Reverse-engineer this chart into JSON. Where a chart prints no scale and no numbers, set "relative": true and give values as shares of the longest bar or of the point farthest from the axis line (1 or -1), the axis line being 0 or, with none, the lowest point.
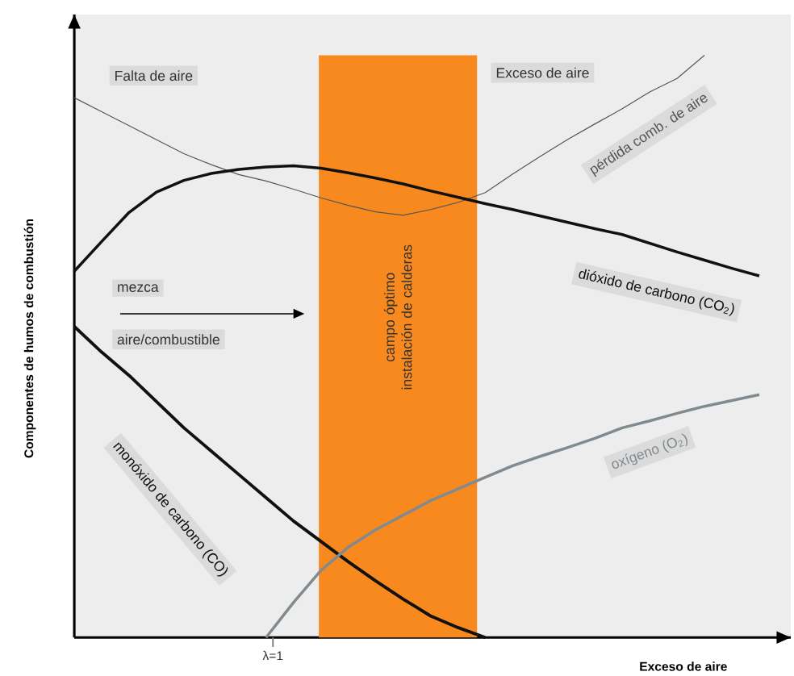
{
  "chart_data": {
    "type": "line",
    "relative": true,
    "xlabel": "Exceso de aire",
    "ylabel": "Componentes de humos de combustión",
    "categories": [
      null,
      null,
      null,
      null,
      null,
      null,
      null,
      null,
      null,
      null,
      null,
      null,
      null,
      null,
      null,
      null,
      null,
      null,
      null,
      null,
      null,
      null,
      null,
      null,
      null,
      null
    ],
    "annotations": [
      "Falta de aire",
      "Exceso de aire",
      "mezca",
      "aire/combustible",
      "λ=1",
      "campo óptimo instalación de calderas"
    ],
    "series": [
      {
        "name": "pérdida comb. de aire",
        "color": "#555555",
        "values": [
          0.927,
          0.903,
          0.879,
          0.855,
          0.831,
          0.812,
          0.795,
          0.784,
          0.77,
          0.755,
          0.742,
          0.731,
          0.725,
          0.735,
          0.747,
          0.764,
          0.796,
          0.826,
          0.855,
          0.882,
          0.908,
          0.937,
          0.96,
          1,
          null,
          null
        ]
      },
      {
        "name": "dióxido de carbono (CO$_{2}$)",
        "color": "#111111",
        "values": [
          0.629,
          0.68,
          0.73,
          0.765,
          0.785,
          0.797,
          0.804,
          0.808,
          0.81,
          0.806,
          0.798,
          0.789,
          0.779,
          0.767,
          0.756,
          0.745,
          0.735,
          0.724,
          0.713,
          0.702,
          0.692,
          0.677,
          0.662,
          0.648,
          0.634,
          0.621
        ]
      },
      {
        "name": "monóxido de carbono (CO)",
        "color": "#111111",
        "values": [
          0.534,
          0.49,
          0.45,
          0.405,
          0.36,
          0.32,
          0.28,
          0.24,
          0.2,
          0.165,
          0.13,
          0.097,
          0.066,
          0.037,
          0.017,
          0,
          null,
          null,
          null,
          null,
          null,
          null,
          null,
          null,
          null,
          null
        ]
      },
      {
        "name": "oxígeno (O$_{2}$)",
        "color": "#808a8f",
        "values": [
          null,
          null,
          null,
          null,
          null,
          null,
          null,
          0,
          0.06,
          0.115,
          0.155,
          0.185,
          0.21,
          0.235,
          0.255,
          0.275,
          0.295,
          0.311,
          0.326,
          0.342,
          0.36,
          0.372,
          0.385,
          0.397,
          0.407,
          0.417
        ]
      }
    ]
  }
}
